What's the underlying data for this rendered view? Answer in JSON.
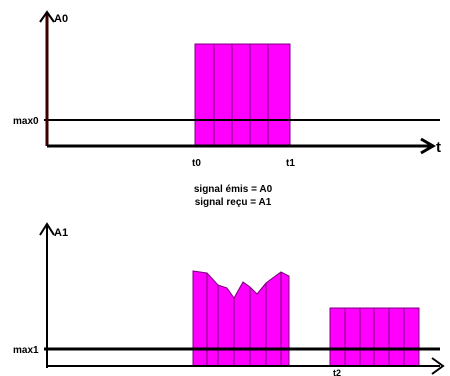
{
  "top": {
    "axis_y_label": "A0",
    "axis_x_label": "t",
    "threshold_label": "max0",
    "t_start_label": "t0",
    "t_end_label": "t1",
    "pulse_color": "#ff00ff"
  },
  "caption": {
    "line1": "signal émis = A0",
    "line2": "signal reçu = A1"
  },
  "bottom": {
    "axis_y_label": "A1",
    "threshold_label": "max1",
    "t2_label": "t2",
    "pulse_color": "#ff00ff"
  },
  "colors": {
    "axis": "#000000",
    "pulse_fill": "#ff00ff",
    "pulse_edge": "#7a007a",
    "top_y_axis": "#3a0000"
  }
}
